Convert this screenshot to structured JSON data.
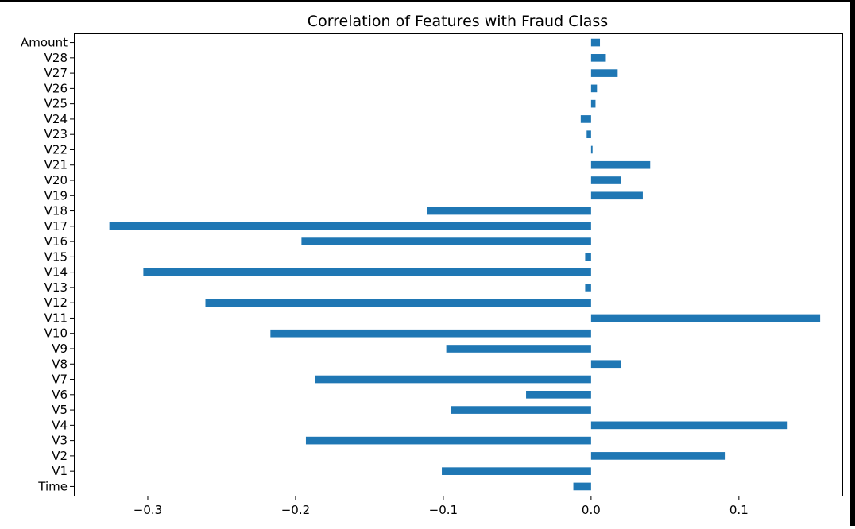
{
  "chart_data": {
    "type": "bar",
    "orientation": "horizontal",
    "title": "Correlation of Features with Fraud Class",
    "xlabel": "",
    "ylabel": "",
    "xlim": [
      -0.35,
      0.17
    ],
    "grid": false,
    "legend": "none",
    "bar_color": "#1f77b4",
    "xticks": [
      {
        "value": -0.3,
        "label": "−0.3"
      },
      {
        "value": -0.2,
        "label": "−0.2"
      },
      {
        "value": -0.1,
        "label": "−0.1"
      },
      {
        "value": 0.0,
        "label": "0.0"
      },
      {
        "value": 0.1,
        "label": "0.1"
      }
    ],
    "categories": [
      "Time",
      "V1",
      "V2",
      "V3",
      "V4",
      "V5",
      "V6",
      "V7",
      "V8",
      "V9",
      "V10",
      "V11",
      "V12",
      "V13",
      "V14",
      "V15",
      "V16",
      "V17",
      "V18",
      "V19",
      "V20",
      "V21",
      "V22",
      "V23",
      "V24",
      "V25",
      "V26",
      "V27",
      "V28",
      "Amount"
    ],
    "values": [
      -0.012,
      -0.101,
      0.091,
      -0.193,
      0.133,
      -0.095,
      -0.044,
      -0.187,
      0.02,
      -0.098,
      -0.217,
      0.155,
      -0.261,
      -0.004,
      -0.303,
      -0.004,
      -0.196,
      -0.326,
      -0.111,
      0.035,
      0.02,
      0.04,
      0.001,
      -0.003,
      -0.007,
      0.003,
      0.004,
      0.018,
      0.01,
      0.006
    ]
  }
}
